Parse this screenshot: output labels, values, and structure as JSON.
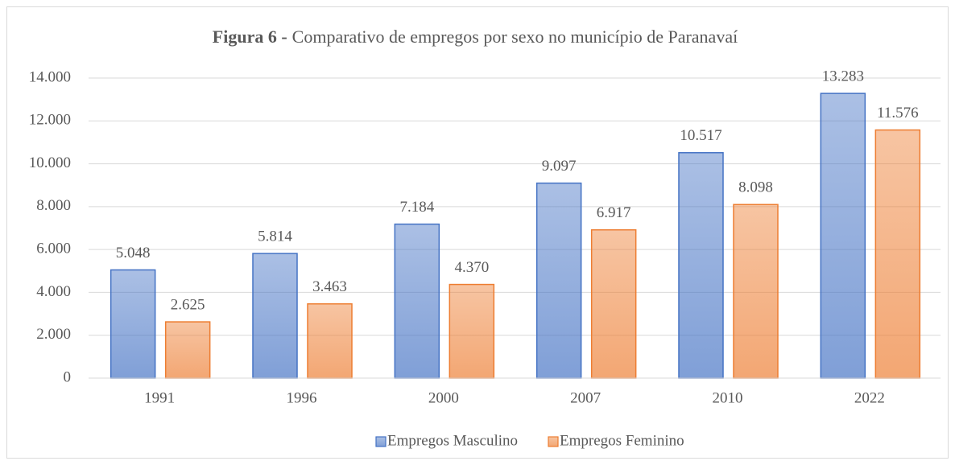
{
  "chart_data": {
    "type": "bar",
    "title": [
      "Figura 6 -",
      "Comparativo de empregos por sexo no município de Paranavaí"
    ],
    "categories": [
      "1991",
      "1996",
      "2000",
      "2007",
      "2010",
      "2022"
    ],
    "series": [
      {
        "name": "Empregos Masculino",
        "color": "#4472c4",
        "values": [
          5048,
          5814,
          7184,
          9097,
          10517,
          13283
        ],
        "value_labels": [
          "5.048",
          "5.814",
          "7.184",
          "9.097",
          "10.517",
          "13.283"
        ]
      },
      {
        "name": "Empregos Feminino",
        "color": "#ed7d31",
        "values": [
          2625,
          3463,
          4370,
          6917,
          8098,
          11576
        ],
        "value_labels": [
          "2.625",
          "3.463",
          "4.370",
          "6.917",
          "8.098",
          "11.576"
        ]
      }
    ],
    "ylim": [
      0,
      14000
    ],
    "yticks": [
      0,
      {
        "value": 2000,
        "label": "2.000"
      },
      {
        "value": 4000,
        "label": "4.000"
      },
      {
        "value": 6000,
        "label": "6.000"
      },
      {
        "value": 8000,
        "label": "8.000"
      },
      {
        "value": 10000,
        "label": "10.000"
      },
      {
        "value": 12000,
        "label": "12.000"
      },
      {
        "value": 14000,
        "label": "14.000"
      }
    ],
    "grid": true,
    "legend": "bottom"
  }
}
